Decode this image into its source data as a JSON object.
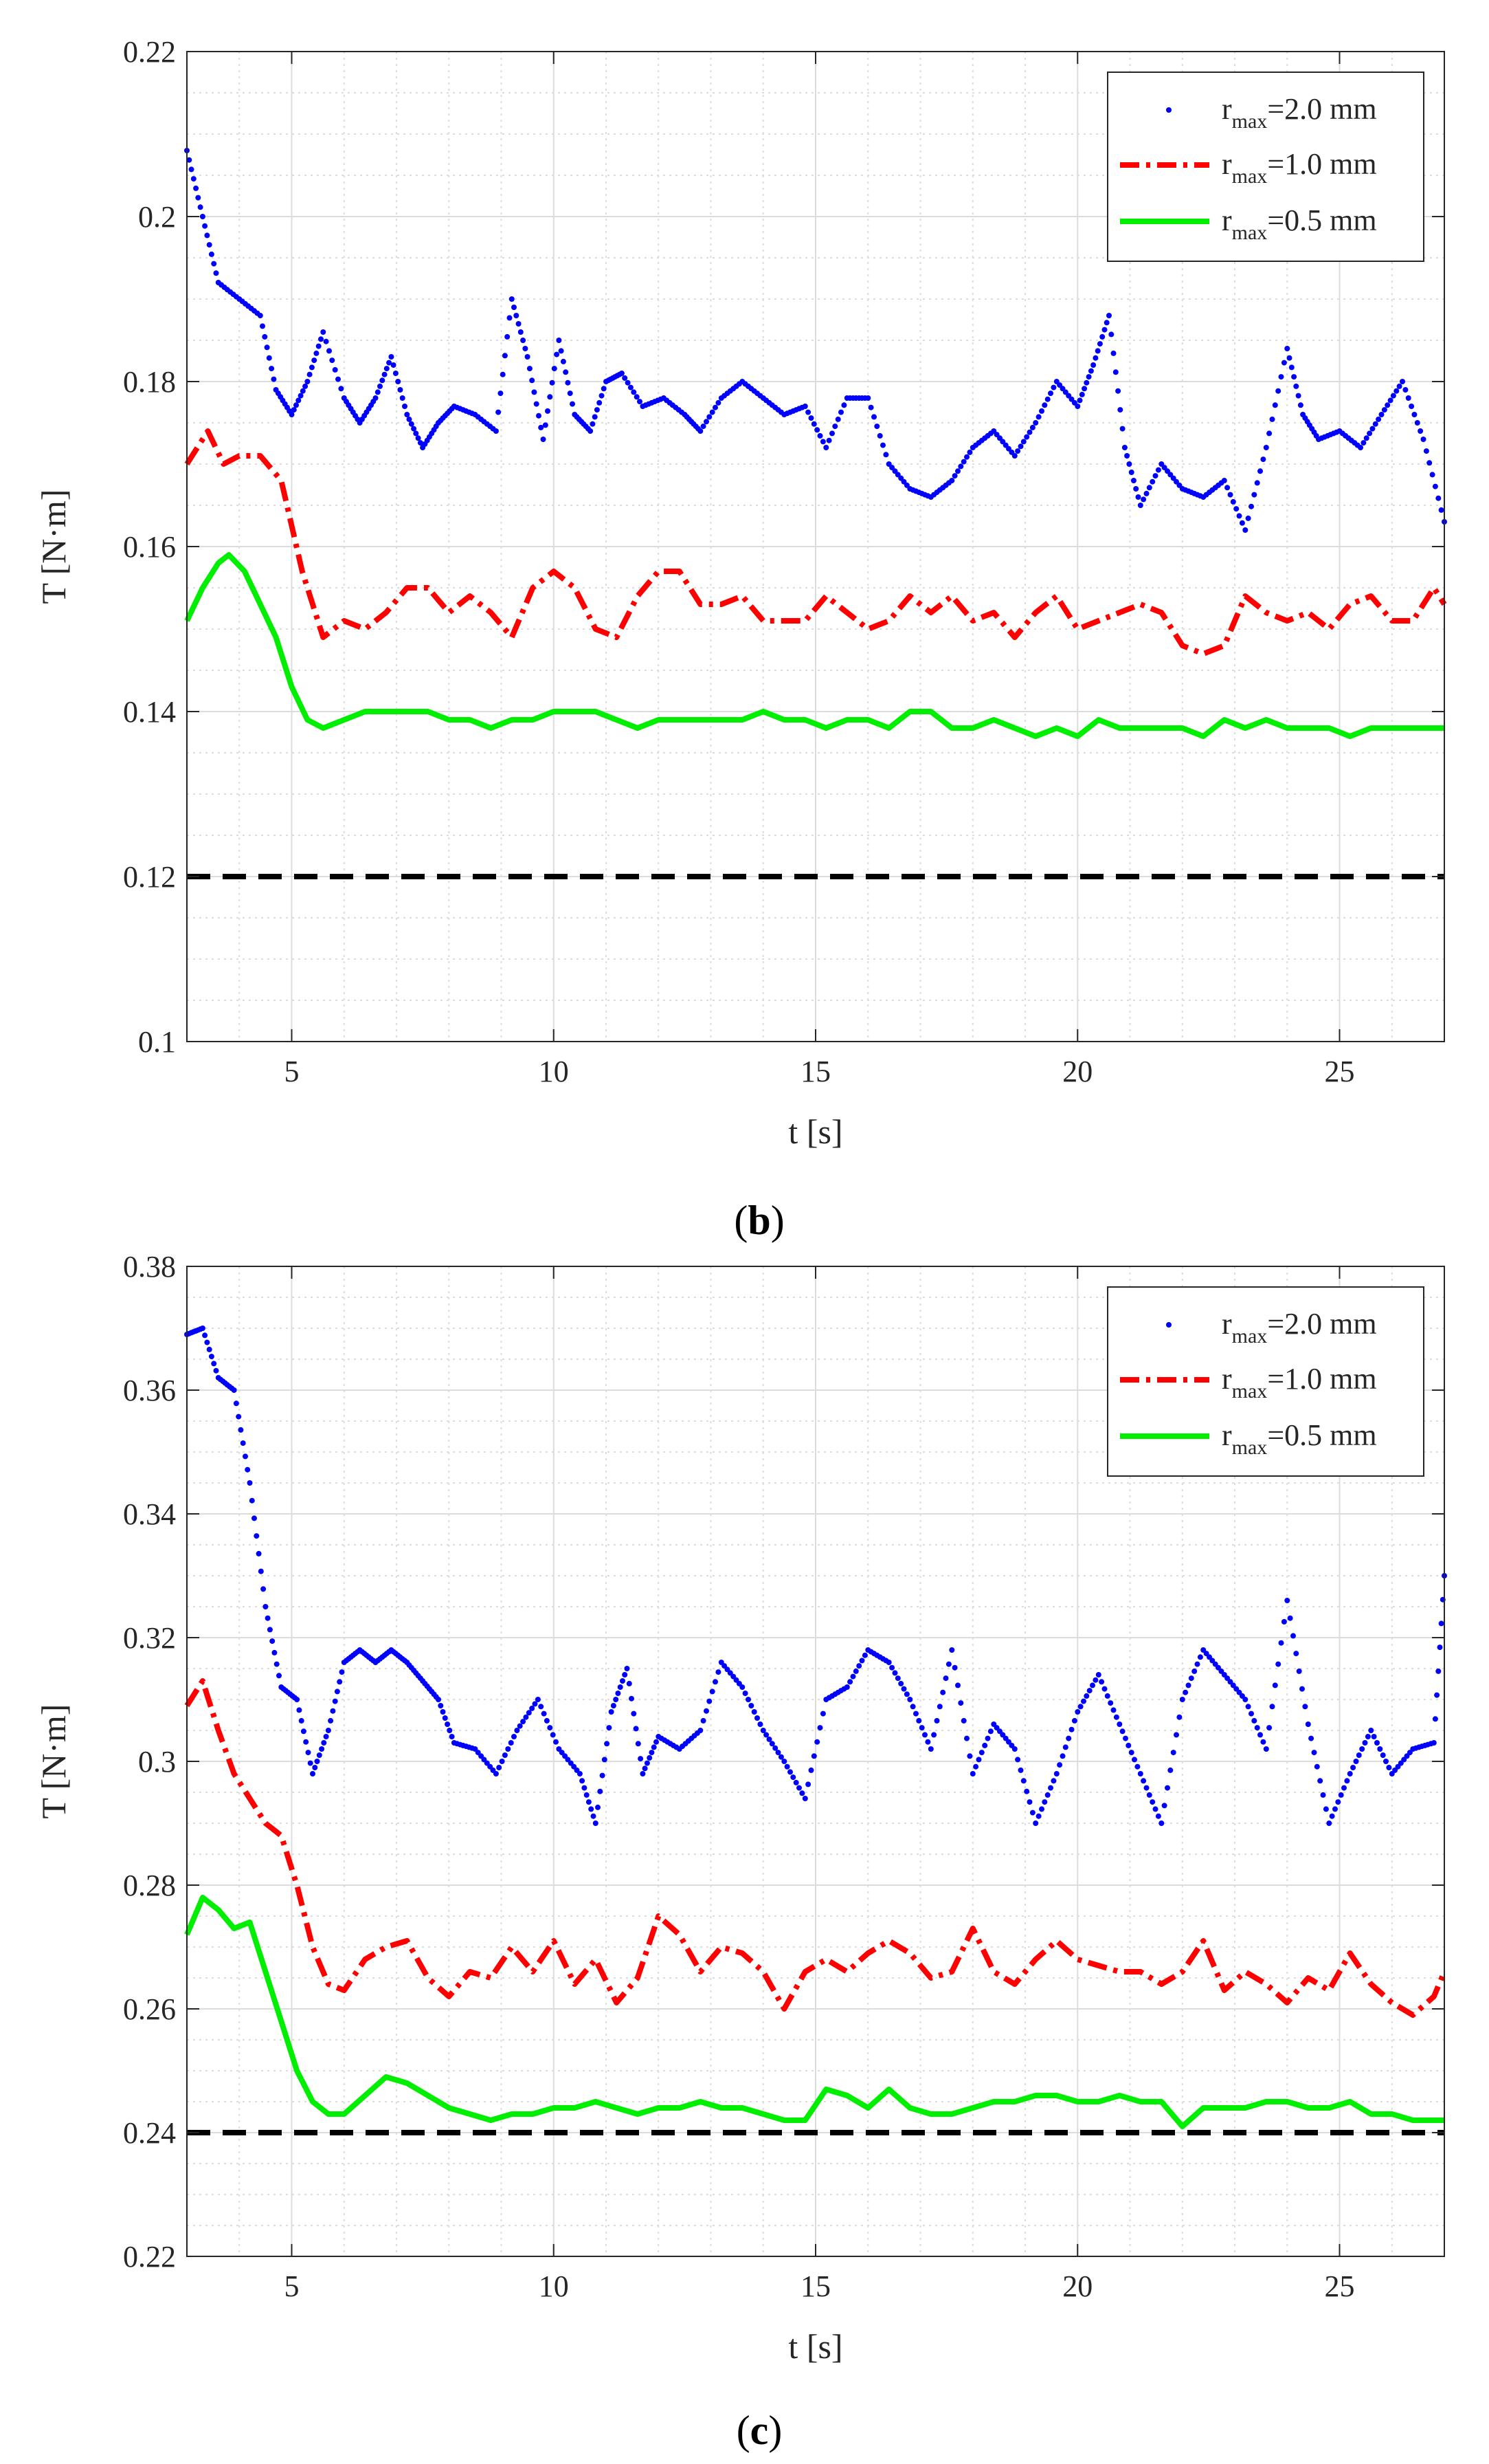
{
  "colors": {
    "series_2mm": "#0000FF",
    "series_1mm": "#FF0000",
    "series_05mm": "#00EE00",
    "reference": "#000000",
    "grid": "#dcdcdc",
    "axis": "#262626"
  },
  "chart_data": [
    {
      "type": "line",
      "panel_prefix": "(",
      "panel_letter": "b",
      "panel_suffix": ")",
      "xlabel": "t [s]",
      "ylabel": "T [N·m]",
      "xlim": [
        3,
        27
      ],
      "ylim": [
        0.1,
        0.22
      ],
      "xticks": [
        5,
        10,
        15,
        20,
        25
      ],
      "xtick_labels": [
        "5",
        "10",
        "15",
        "20",
        "25"
      ],
      "yticks": [
        0.1,
        0.12,
        0.14,
        0.16,
        0.18,
        0.2,
        0.22
      ],
      "ytick_labels": [
        "0.1",
        "0.12",
        "0.14",
        "0.16",
        "0.18",
        "0.2",
        "0.22"
      ],
      "grid": true,
      "minor_grid": true,
      "legend_position": "top-right",
      "reference_line": {
        "y": 0.12,
        "style": "dashed"
      },
      "series": [
        {
          "name": "r_max=2.0 mm",
          "label_main": "r",
          "label_sub": "max",
          "label_rest": "=2.0 mm",
          "style": "dots",
          "color": "#0000FF",
          "x": [
            3.0,
            3.3,
            3.6,
            4.0,
            4.4,
            4.7,
            5.0,
            5.3,
            5.6,
            6.0,
            6.3,
            6.6,
            6.9,
            7.2,
            7.5,
            7.8,
            8.1,
            8.5,
            8.9,
            9.2,
            9.5,
            9.8,
            10.1,
            10.4,
            10.7,
            11.0,
            11.3,
            11.7,
            12.1,
            12.5,
            12.8,
            13.2,
            13.6,
            14.0,
            14.4,
            14.8,
            15.2,
            15.6,
            16.0,
            16.4,
            16.8,
            17.2,
            17.6,
            18.0,
            18.4,
            18.8,
            19.2,
            19.6,
            20.0,
            20.3,
            20.6,
            20.9,
            21.2,
            21.6,
            22.0,
            22.4,
            22.8,
            23.2,
            23.6,
            24.0,
            24.3,
            24.6,
            25.0,
            25.4,
            25.8,
            26.2,
            26.6,
            27.0
          ],
          "y": [
            0.208,
            0.2,
            0.192,
            0.19,
            0.188,
            0.179,
            0.176,
            0.18,
            0.186,
            0.178,
            0.175,
            0.178,
            0.183,
            0.176,
            0.172,
            0.175,
            0.177,
            0.176,
            0.174,
            0.19,
            0.183,
            0.173,
            0.185,
            0.176,
            0.174,
            0.18,
            0.181,
            0.177,
            0.178,
            0.176,
            0.174,
            0.178,
            0.18,
            0.178,
            0.176,
            0.177,
            0.172,
            0.178,
            0.178,
            0.17,
            0.167,
            0.166,
            0.168,
            0.172,
            0.174,
            0.171,
            0.175,
            0.18,
            0.177,
            0.182,
            0.188,
            0.172,
            0.165,
            0.17,
            0.167,
            0.166,
            0.168,
            0.162,
            0.172,
            0.184,
            0.176,
            0.173,
            0.174,
            0.172,
            0.176,
            0.18,
            0.173,
            0.163
          ]
        },
        {
          "name": "r_max=1.0 mm",
          "label_main": "r",
          "label_sub": "max",
          "label_rest": "=1.0 mm",
          "style": "dashdot",
          "color": "#FF0000",
          "x": [
            3.0,
            3.4,
            3.7,
            4.0,
            4.4,
            4.8,
            5.2,
            5.6,
            6.0,
            6.4,
            6.8,
            7.2,
            7.6,
            8.0,
            8.4,
            8.8,
            9.2,
            9.6,
            10.0,
            10.4,
            10.8,
            11.2,
            11.6,
            12.0,
            12.4,
            12.8,
            13.2,
            13.6,
            14.0,
            14.4,
            14.8,
            15.2,
            15.6,
            16.0,
            16.4,
            16.8,
            17.2,
            17.6,
            18.0,
            18.4,
            18.8,
            19.2,
            19.6,
            20.0,
            20.4,
            20.8,
            21.2,
            21.6,
            22.0,
            22.4,
            22.8,
            23.2,
            23.6,
            24.0,
            24.4,
            24.8,
            25.2,
            25.6,
            26.0,
            26.4,
            26.8,
            27.0
          ],
          "y": [
            0.17,
            0.174,
            0.17,
            0.171,
            0.171,
            0.168,
            0.157,
            0.149,
            0.151,
            0.15,
            0.152,
            0.155,
            0.155,
            0.152,
            0.154,
            0.152,
            0.149,
            0.155,
            0.157,
            0.155,
            0.15,
            0.149,
            0.154,
            0.157,
            0.157,
            0.153,
            0.153,
            0.154,
            0.151,
            0.151,
            0.151,
            0.154,
            0.152,
            0.15,
            0.151,
            0.154,
            0.152,
            0.154,
            0.151,
            0.152,
            0.149,
            0.152,
            0.154,
            0.15,
            0.151,
            0.152,
            0.153,
            0.152,
            0.148,
            0.147,
            0.148,
            0.154,
            0.152,
            0.151,
            0.152,
            0.15,
            0.153,
            0.154,
            0.151,
            0.151,
            0.155,
            0.153
          ]
        },
        {
          "name": "r_max=0.5 mm",
          "label_main": "r",
          "label_sub": "max",
          "label_rest": "=0.5 mm",
          "style": "solid",
          "color": "#00EE00",
          "x": [
            3.0,
            3.3,
            3.6,
            3.8,
            4.1,
            4.4,
            4.7,
            5.0,
            5.3,
            5.6,
            6.0,
            6.4,
            6.8,
            7.2,
            7.6,
            8.0,
            8.4,
            8.8,
            9.2,
            9.6,
            10.0,
            10.4,
            10.8,
            11.2,
            11.6,
            12.0,
            12.4,
            12.8,
            13.2,
            13.6,
            14.0,
            14.4,
            14.8,
            15.2,
            15.6,
            16.0,
            16.4,
            16.8,
            17.2,
            17.6,
            18.0,
            18.4,
            18.8,
            19.2,
            19.6,
            20.0,
            20.4,
            20.8,
            21.2,
            21.6,
            22.0,
            22.4,
            22.8,
            23.2,
            23.6,
            24.0,
            24.4,
            24.8,
            25.2,
            25.6,
            26.0,
            26.4,
            26.8,
            27.0
          ],
          "y": [
            0.151,
            0.155,
            0.158,
            0.159,
            0.157,
            0.153,
            0.149,
            0.143,
            0.139,
            0.138,
            0.139,
            0.14,
            0.14,
            0.14,
            0.14,
            0.139,
            0.139,
            0.138,
            0.139,
            0.139,
            0.14,
            0.14,
            0.14,
            0.139,
            0.138,
            0.139,
            0.139,
            0.139,
            0.139,
            0.139,
            0.14,
            0.139,
            0.139,
            0.138,
            0.139,
            0.139,
            0.138,
            0.14,
            0.14,
            0.138,
            0.138,
            0.139,
            0.138,
            0.137,
            0.138,
            0.137,
            0.139,
            0.138,
            0.138,
            0.138,
            0.138,
            0.137,
            0.139,
            0.138,
            0.139,
            0.138,
            0.138,
            0.138,
            0.137,
            0.138,
            0.138,
            0.138,
            0.138,
            0.138
          ]
        }
      ]
    },
    {
      "type": "line",
      "panel_prefix": "(",
      "panel_letter": "c",
      "panel_suffix": ")",
      "xlabel": "t [s]",
      "ylabel": "T [N·m]",
      "xlim": [
        3,
        27
      ],
      "ylim": [
        0.22,
        0.38
      ],
      "xticks": [
        5,
        10,
        15,
        20,
        25
      ],
      "xtick_labels": [
        "5",
        "10",
        "15",
        "20",
        "25"
      ],
      "yticks": [
        0.22,
        0.24,
        0.26,
        0.28,
        0.3,
        0.32,
        0.34,
        0.36,
        0.38
      ],
      "ytick_labels": [
        "0.22",
        "0.24",
        "0.26",
        "0.28",
        "0.3",
        "0.32",
        "0.34",
        "0.36",
        "0.38"
      ],
      "grid": true,
      "minor_grid": true,
      "legend_position": "top-right",
      "reference_line": {
        "y": 0.24,
        "style": "dashed"
      },
      "series": [
        {
          "name": "r_max=2.0 mm",
          "label_main": "r",
          "label_sub": "max",
          "label_rest": "=2.0 mm",
          "style": "dots",
          "color": "#0000FF",
          "x": [
            3.0,
            3.3,
            3.6,
            3.9,
            4.2,
            4.5,
            4.8,
            5.1,
            5.4,
            5.7,
            6.0,
            6.3,
            6.6,
            6.9,
            7.2,
            7.5,
            7.8,
            8.1,
            8.5,
            8.9,
            9.3,
            9.7,
            10.1,
            10.5,
            10.8,
            11.1,
            11.4,
            11.7,
            12.0,
            12.4,
            12.8,
            13.2,
            13.6,
            14.0,
            14.4,
            14.8,
            15.2,
            15.6,
            16.0,
            16.4,
            16.8,
            17.2,
            17.6,
            18.0,
            18.4,
            18.8,
            19.2,
            19.6,
            20.0,
            20.4,
            20.8,
            21.2,
            21.6,
            22.0,
            22.4,
            22.8,
            23.2,
            23.6,
            24.0,
            24.4,
            24.8,
            25.2,
            25.6,
            26.0,
            26.4,
            26.8,
            27.0
          ],
          "y": [
            0.369,
            0.37,
            0.362,
            0.36,
            0.345,
            0.325,
            0.312,
            0.31,
            0.298,
            0.305,
            0.316,
            0.318,
            0.316,
            0.318,
            0.316,
            0.313,
            0.31,
            0.303,
            0.302,
            0.298,
            0.305,
            0.31,
            0.302,
            0.298,
            0.29,
            0.308,
            0.315,
            0.298,
            0.304,
            0.302,
            0.305,
            0.316,
            0.312,
            0.305,
            0.3,
            0.294,
            0.31,
            0.312,
            0.318,
            0.316,
            0.31,
            0.302,
            0.318,
            0.298,
            0.306,
            0.302,
            0.29,
            0.298,
            0.308,
            0.314,
            0.306,
            0.298,
            0.29,
            0.31,
            0.318,
            0.314,
            0.31,
            0.302,
            0.326,
            0.306,
            0.29,
            0.298,
            0.305,
            0.298,
            0.302,
            0.303,
            0.33
          ]
        },
        {
          "name": "r_max=1.0 mm",
          "label_main": "r",
          "label_sub": "max",
          "label_rest": "=1.0 mm",
          "style": "dashdot",
          "color": "#FF0000",
          "x": [
            3.0,
            3.3,
            3.6,
            3.9,
            4.2,
            4.5,
            4.8,
            5.1,
            5.4,
            5.7,
            6.0,
            6.4,
            6.8,
            7.2,
            7.6,
            8.0,
            8.4,
            8.8,
            9.2,
            9.6,
            10.0,
            10.4,
            10.8,
            11.2,
            11.6,
            12.0,
            12.4,
            12.8,
            13.2,
            13.6,
            14.0,
            14.4,
            14.8,
            15.2,
            15.6,
            16.0,
            16.4,
            16.8,
            17.2,
            17.6,
            18.0,
            18.4,
            18.8,
            19.2,
            19.6,
            20.0,
            20.4,
            20.8,
            21.2,
            21.6,
            22.0,
            22.4,
            22.8,
            23.2,
            23.6,
            24.0,
            24.4,
            24.8,
            25.2,
            25.6,
            26.0,
            26.4,
            26.8,
            27.0
          ],
          "y": [
            0.309,
            0.313,
            0.305,
            0.298,
            0.294,
            0.29,
            0.288,
            0.28,
            0.27,
            0.264,
            0.263,
            0.268,
            0.27,
            0.271,
            0.265,
            0.262,
            0.266,
            0.265,
            0.27,
            0.266,
            0.271,
            0.264,
            0.268,
            0.261,
            0.265,
            0.275,
            0.272,
            0.266,
            0.27,
            0.269,
            0.266,
            0.26,
            0.266,
            0.268,
            0.266,
            0.269,
            0.271,
            0.269,
            0.265,
            0.266,
            0.273,
            0.266,
            0.264,
            0.268,
            0.271,
            0.268,
            0.267,
            0.266,
            0.266,
            0.264,
            0.266,
            0.271,
            0.263,
            0.266,
            0.264,
            0.261,
            0.265,
            0.263,
            0.269,
            0.264,
            0.261,
            0.259,
            0.262,
            0.266
          ]
        },
        {
          "name": "r_max=0.5 mm",
          "label_main": "r",
          "label_sub": "max",
          "label_rest": "=0.5 mm",
          "style": "solid",
          "color": "#00EE00",
          "x": [
            3.0,
            3.3,
            3.6,
            3.9,
            4.2,
            4.5,
            4.8,
            5.1,
            5.4,
            5.7,
            6.0,
            6.4,
            6.8,
            7.2,
            7.6,
            8.0,
            8.4,
            8.8,
            9.2,
            9.6,
            10.0,
            10.4,
            10.8,
            11.2,
            11.6,
            12.0,
            12.4,
            12.8,
            13.2,
            13.6,
            14.0,
            14.4,
            14.8,
            15.2,
            15.6,
            16.0,
            16.4,
            16.8,
            17.2,
            17.6,
            18.0,
            18.4,
            18.8,
            19.2,
            19.6,
            20.0,
            20.4,
            20.8,
            21.2,
            21.6,
            22.0,
            22.4,
            22.8,
            23.2,
            23.6,
            24.0,
            24.4,
            24.8,
            25.2,
            25.6,
            26.0,
            26.4,
            26.8,
            27.0
          ],
          "y": [
            0.272,
            0.278,
            0.276,
            0.273,
            0.274,
            0.266,
            0.258,
            0.25,
            0.245,
            0.243,
            0.243,
            0.246,
            0.249,
            0.248,
            0.246,
            0.244,
            0.243,
            0.242,
            0.243,
            0.243,
            0.244,
            0.244,
            0.245,
            0.244,
            0.243,
            0.244,
            0.244,
            0.245,
            0.244,
            0.244,
            0.243,
            0.242,
            0.242,
            0.247,
            0.246,
            0.244,
            0.247,
            0.244,
            0.243,
            0.243,
            0.244,
            0.245,
            0.245,
            0.246,
            0.246,
            0.245,
            0.245,
            0.246,
            0.245,
            0.245,
            0.241,
            0.244,
            0.244,
            0.244,
            0.245,
            0.245,
            0.244,
            0.244,
            0.245,
            0.243,
            0.243,
            0.242,
            0.242,
            0.242
          ]
        }
      ]
    }
  ]
}
